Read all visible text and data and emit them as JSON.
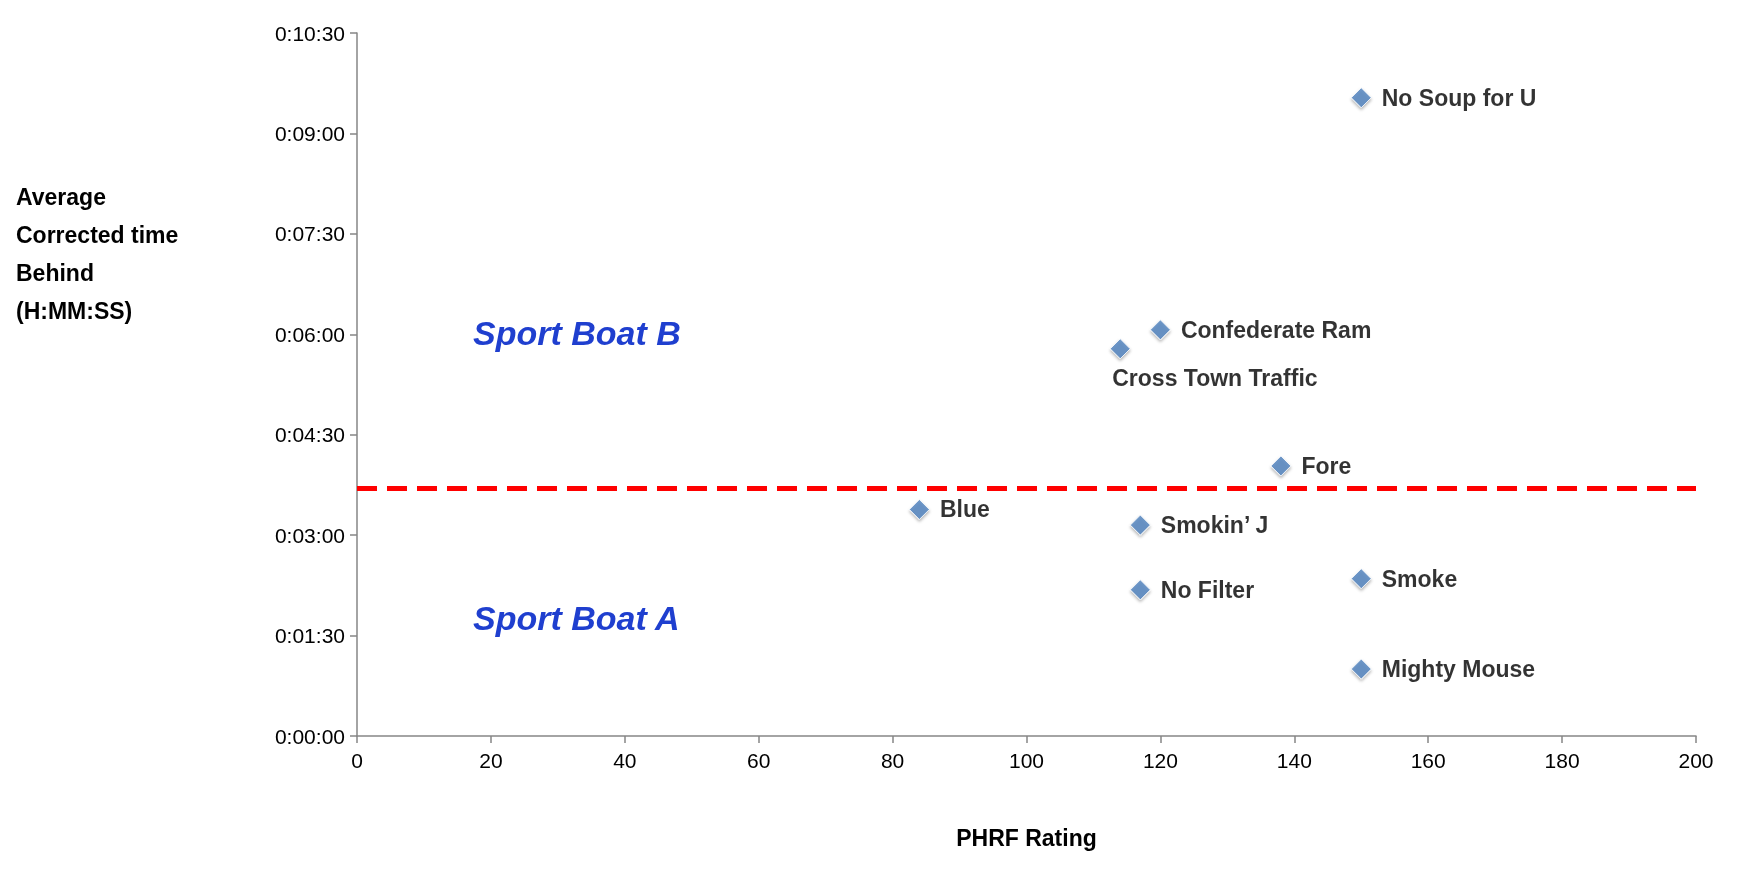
{
  "chart_data": {
    "type": "scatter",
    "xlabel": "PHRF Rating",
    "ylabel": "Average Corrected time Behind (H:MM:SS)",
    "xlim": [
      0,
      200
    ],
    "xticks": [
      0,
      20,
      40,
      60,
      80,
      100,
      120,
      140,
      160,
      180,
      200
    ],
    "ylim": [
      0,
      630
    ],
    "yticks": [
      {
        "value": 0,
        "label": "0:00:00"
      },
      {
        "value": 90,
        "label": "0:01:30"
      },
      {
        "value": 180,
        "label": "0:03:00"
      },
      {
        "value": 270,
        "label": "0:04:30"
      },
      {
        "value": 360,
        "label": "0:06:00"
      },
      {
        "value": 450,
        "label": "0:07:30"
      },
      {
        "value": 540,
        "label": "0:09:00"
      },
      {
        "value": 630,
        "label": "0:10:30"
      }
    ],
    "series": [
      {
        "color": "#4f81bd",
        "x": [
          150,
          120,
          114,
          138,
          84,
          117,
          150,
          117,
          150
        ],
        "values": [
          572,
          364,
          347,
          242,
          203,
          189,
          141,
          131,
          60
        ],
        "value_labels": [
          "No Soup for U",
          "Confederate Ram",
          "Cross Town Traffic",
          "Fore",
          "Blue",
          "Smokin’ J",
          "Smoke",
          "No Filter",
          "Mighty Mouse"
        ]
      }
    ],
    "ref_lines": [
      {
        "axis": "y",
        "value": 222,
        "color": "#ff0000",
        "line_style": "dashed"
      }
    ],
    "annotations": [
      "Sport Boat B",
      "Sport Boat A"
    ],
    "marker": "diamond"
  }
}
